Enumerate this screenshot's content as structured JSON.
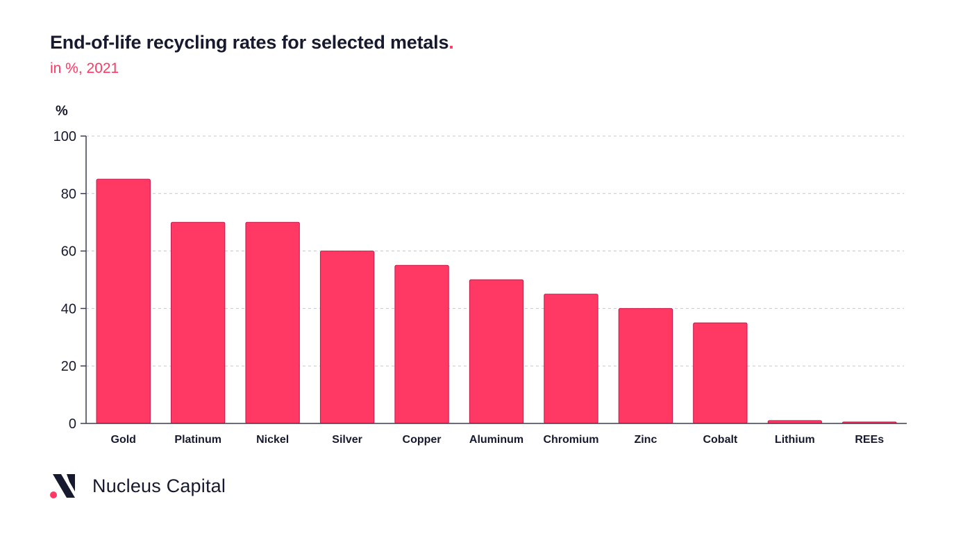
{
  "header": {
    "title": "End-of-life recycling rates for selected metals",
    "title_dot": ".",
    "subtitle": "in %, 2021"
  },
  "footer": {
    "brand": "Nucleus Capital",
    "logo_icon": "nucleus-capital-logo-icon"
  },
  "colors": {
    "bar": "#ff3864",
    "accent": "#ff3864",
    "text": "#171a2e"
  },
  "chart_data": {
    "type": "bar",
    "title": "End-of-life recycling rates for selected metals.",
    "subtitle": "in %, 2021",
    "ylabel": "%",
    "xlabel": "",
    "ylim": [
      0,
      100
    ],
    "yticks": [
      0,
      20,
      40,
      60,
      80,
      100
    ],
    "grid": true,
    "categories": [
      "Gold",
      "Platinum",
      "Nickel",
      "Silver",
      "Copper",
      "Aluminum",
      "Chromium",
      "Zinc",
      "Cobalt",
      "Lithium",
      "REEs"
    ],
    "values": [
      85,
      70,
      70,
      60,
      55,
      50,
      45,
      40,
      35,
      1,
      0.5
    ]
  }
}
